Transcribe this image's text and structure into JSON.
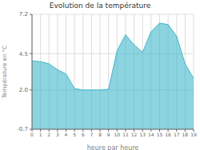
{
  "chart_data": {
    "type": "area",
    "title": "Evolution de la température",
    "xlabel": "heure par heure",
    "ylabel": "Température en °C",
    "x": [
      0,
      1,
      2,
      3,
      4,
      5,
      6,
      7,
      8,
      9,
      10,
      11,
      12,
      13,
      14,
      15,
      16,
      17,
      18,
      19
    ],
    "values": [
      4.0,
      3.95,
      3.8,
      3.4,
      3.1,
      2.1,
      2.0,
      2.0,
      2.0,
      2.05,
      4.7,
      5.8,
      5.1,
      4.6,
      6.0,
      6.6,
      6.5,
      5.7,
      3.8,
      2.8
    ],
    "color": "#40b8cc",
    "xlim": [
      0,
      19
    ],
    "xticks": [
      0,
      1,
      2,
      3,
      4,
      5,
      6,
      7,
      8,
      9,
      10,
      11,
      12,
      13,
      14,
      15,
      16,
      17,
      18,
      19
    ],
    "ylim": [
      -0.7,
      7.2
    ],
    "yticks": [
      -0.7,
      {
        "value": 2.0,
        "label": "2.0"
      },
      4.5,
      7.2
    ],
    "grid": true
  }
}
